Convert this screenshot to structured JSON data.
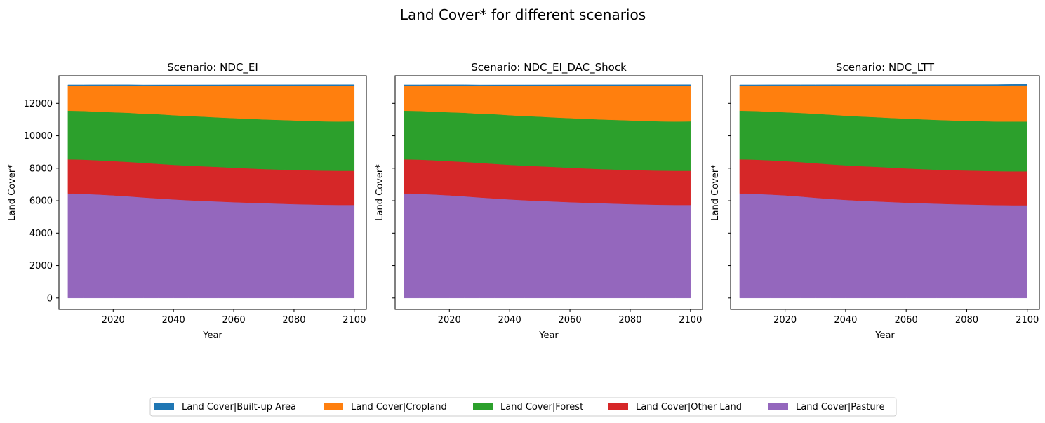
{
  "figure": {
    "title": "Land Cover* for different scenarios"
  },
  "legend": {
    "placement": "bottom-center",
    "items": [
      {
        "label": "Land Cover|Built-up Area",
        "color": "#1f77b4"
      },
      {
        "label": "Land Cover|Cropland",
        "color": "#ff7f0e"
      },
      {
        "label": "Land Cover|Forest",
        "color": "#2ca02c"
      },
      {
        "label": "Land Cover|Other Land",
        "color": "#d62728"
      },
      {
        "label": "Land Cover|Pasture",
        "color": "#9467bd"
      }
    ]
  },
  "chart_data": [
    {
      "type": "area",
      "stacked": true,
      "title": "Scenario: NDC_EI",
      "xlabel": "Year",
      "ylabel": "Land Cover*",
      "xlim": [
        2002,
        2104
      ],
      "ylim": [
        -700,
        13700
      ],
      "xticks": [
        2020,
        2040,
        2060,
        2080,
        2100
      ],
      "yticks": [
        0,
        2000,
        4000,
        6000,
        8000,
        10000,
        12000
      ],
      "grid": false,
      "x": [
        2005,
        2010,
        2015,
        2020,
        2025,
        2030,
        2035,
        2040,
        2045,
        2050,
        2055,
        2060,
        2065,
        2070,
        2075,
        2080,
        2085,
        2090,
        2095,
        2100
      ],
      "series": [
        {
          "name": "Land Cover|Pasture",
          "color": "#9467bd",
          "values": [
            6450,
            6420,
            6380,
            6330,
            6270,
            6200,
            6140,
            6080,
            6030,
            5990,
            5950,
            5910,
            5880,
            5850,
            5820,
            5790,
            5770,
            5750,
            5740,
            5740
          ]
        },
        {
          "name": "Land Cover|Other Land",
          "color": "#d62728",
          "values": [
            2100,
            2110,
            2110,
            2110,
            2120,
            2130,
            2130,
            2130,
            2130,
            2130,
            2130,
            2120,
            2110,
            2100,
            2100,
            2100,
            2100,
            2100,
            2100,
            2100
          ]
        },
        {
          "name": "Land Cover|Forest",
          "color": "#2ca02c",
          "values": [
            3000,
            3000,
            3000,
            3010,
            3030,
            3030,
            3060,
            3060,
            3060,
            3060,
            3050,
            3060,
            3060,
            3060,
            3060,
            3060,
            3050,
            3040,
            3040,
            3050
          ]
        },
        {
          "name": "Land Cover|Cropland",
          "color": "#ff7f0e",
          "values": [
            1550,
            1570,
            1610,
            1650,
            1680,
            1730,
            1760,
            1820,
            1870,
            1910,
            1960,
            2000,
            2040,
            2080,
            2110,
            2140,
            2170,
            2200,
            2210,
            2200
          ]
        },
        {
          "name": "Land Cover|Built-up Area",
          "color": "#1f77b4",
          "values": [
            40,
            40,
            42,
            43,
            44,
            45,
            46,
            47,
            48,
            49,
            50,
            51,
            52,
            53,
            54,
            55,
            56,
            57,
            58,
            60
          ]
        }
      ]
    },
    {
      "type": "area",
      "stacked": true,
      "title": "Scenario: NDC_EI_DAC_Shock",
      "xlabel": "Year",
      "ylabel": "Land Cover*",
      "xlim": [
        2002,
        2104
      ],
      "ylim": [
        -700,
        13700
      ],
      "xticks": [
        2020,
        2040,
        2060,
        2080,
        2100
      ],
      "yticks": [
        0,
        2000,
        4000,
        6000,
        8000,
        10000,
        12000
      ],
      "grid": false,
      "x": [
        2005,
        2010,
        2015,
        2020,
        2025,
        2030,
        2035,
        2040,
        2045,
        2050,
        2055,
        2060,
        2065,
        2070,
        2075,
        2080,
        2085,
        2090,
        2095,
        2100
      ],
      "series": [
        {
          "name": "Land Cover|Pasture",
          "color": "#9467bd",
          "values": [
            6450,
            6420,
            6380,
            6330,
            6270,
            6200,
            6140,
            6080,
            6030,
            5990,
            5950,
            5910,
            5880,
            5850,
            5820,
            5790,
            5770,
            5750,
            5740,
            5740
          ]
        },
        {
          "name": "Land Cover|Other Land",
          "color": "#d62728",
          "values": [
            2100,
            2110,
            2110,
            2110,
            2120,
            2130,
            2130,
            2130,
            2130,
            2130,
            2130,
            2120,
            2110,
            2100,
            2100,
            2100,
            2100,
            2100,
            2100,
            2100
          ]
        },
        {
          "name": "Land Cover|Forest",
          "color": "#2ca02c",
          "values": [
            3000,
            3000,
            3000,
            3010,
            3030,
            3030,
            3060,
            3060,
            3060,
            3060,
            3050,
            3060,
            3060,
            3060,
            3060,
            3060,
            3050,
            3040,
            3040,
            3050
          ]
        },
        {
          "name": "Land Cover|Cropland",
          "color": "#ff7f0e",
          "values": [
            1550,
            1570,
            1610,
            1650,
            1680,
            1730,
            1760,
            1820,
            1870,
            1910,
            1960,
            2000,
            2040,
            2080,
            2110,
            2140,
            2170,
            2200,
            2210,
            2200
          ]
        },
        {
          "name": "Land Cover|Built-up Area",
          "color": "#1f77b4",
          "values": [
            40,
            40,
            42,
            43,
            44,
            45,
            46,
            47,
            48,
            49,
            50,
            51,
            52,
            53,
            54,
            55,
            56,
            57,
            58,
            60
          ]
        }
      ]
    },
    {
      "type": "area",
      "stacked": true,
      "title": "Scenario: NDC_LTT",
      "xlabel": "Year",
      "ylabel": "Land Cover*",
      "xlim": [
        2002,
        2104
      ],
      "ylim": [
        -700,
        13700
      ],
      "xticks": [
        2020,
        2040,
        2060,
        2080,
        2100
      ],
      "yticks": [
        0,
        2000,
        4000,
        6000,
        8000,
        10000,
        12000
      ],
      "grid": false,
      "x": [
        2005,
        2010,
        2015,
        2020,
        2025,
        2030,
        2035,
        2040,
        2045,
        2050,
        2055,
        2060,
        2065,
        2070,
        2075,
        2080,
        2085,
        2090,
        2095,
        2100
      ],
      "series": [
        {
          "name": "Land Cover|Pasture",
          "color": "#9467bd",
          "values": [
            6450,
            6420,
            6380,
            6330,
            6260,
            6180,
            6110,
            6050,
            6000,
            5960,
            5920,
            5880,
            5850,
            5820,
            5790,
            5770,
            5750,
            5730,
            5720,
            5720
          ]
        },
        {
          "name": "Land Cover|Other Land",
          "color": "#d62728",
          "values": [
            2100,
            2110,
            2110,
            2110,
            2120,
            2130,
            2130,
            2130,
            2130,
            2130,
            2120,
            2110,
            2100,
            2090,
            2090,
            2090,
            2090,
            2090,
            2090,
            2090
          ]
        },
        {
          "name": "Land Cover|Forest",
          "color": "#2ca02c",
          "values": [
            3000,
            3000,
            3000,
            3010,
            3030,
            3050,
            3060,
            3060,
            3060,
            3060,
            3060,
            3070,
            3070,
            3070,
            3070,
            3060,
            3060,
            3060,
            3070,
            3070
          ]
        },
        {
          "name": "Land Cover|Cropland",
          "color": "#ff7f0e",
          "values": [
            1550,
            1570,
            1610,
            1650,
            1690,
            1740,
            1800,
            1860,
            1910,
            1950,
            2000,
            2040,
            2080,
            2120,
            2150,
            2180,
            2200,
            2220,
            2230,
            2230
          ]
        },
        {
          "name": "Land Cover|Built-up Area",
          "color": "#1f77b4",
          "values": [
            40,
            40,
            42,
            43,
            44,
            45,
            46,
            47,
            48,
            49,
            50,
            51,
            52,
            53,
            54,
            55,
            56,
            57,
            58,
            60
          ]
        }
      ]
    }
  ]
}
